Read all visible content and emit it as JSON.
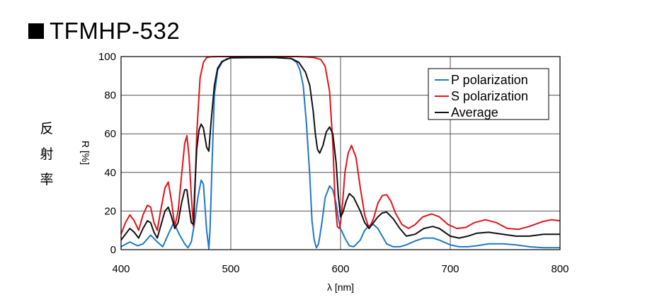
{
  "title": "TFMHP-532",
  "side_label": "反射率",
  "chart_data": {
    "type": "line",
    "title": "TFMHP-532",
    "xlabel": "λ [nm]",
    "ylabel": "R [%]",
    "xlim": [
      400,
      800
    ],
    "ylim": [
      0,
      100
    ],
    "xticks": [
      400,
      500,
      600,
      700,
      800
    ],
    "yticks": [
      0,
      20,
      40,
      60,
      80,
      100
    ],
    "grid": true,
    "legend_position": "top-right",
    "series": [
      {
        "name": "P polarization",
        "color": "#1f78c8",
        "x": [
          400,
          408,
          415,
          420,
          427,
          433,
          438,
          443,
          448,
          453,
          458,
          461,
          464,
          467,
          470,
          473,
          475,
          478,
          480,
          481,
          483,
          485,
          488,
          492,
          496,
          500,
          520,
          540,
          555,
          560,
          563,
          566,
          569,
          572,
          574,
          576,
          578,
          580,
          583,
          586,
          590,
          593,
          596,
          598,
          600,
          604,
          608,
          612,
          618,
          622,
          626,
          630,
          634,
          638,
          642,
          648,
          654,
          660,
          668,
          676,
          684,
          690,
          700,
          708,
          716,
          724,
          735,
          748,
          760,
          772,
          785,
          800
        ],
        "y": [
          1.5,
          4,
          2,
          3,
          7.5,
          4,
          1.5,
          8,
          14,
          8,
          3,
          1,
          4,
          14,
          27,
          36,
          34,
          10,
          0.5,
          10,
          45,
          80,
          93,
          97,
          98.8,
          99.3,
          99.5,
          99.5,
          99,
          97,
          93,
          85,
          65,
          38,
          15,
          5,
          1,
          3,
          14,
          27,
          33,
          31,
          24,
          16,
          11,
          6,
          2,
          1.5,
          5,
          10,
          12.5,
          13,
          11,
          7,
          3,
          1.5,
          1.5,
          2.5,
          4.5,
          6,
          6,
          5,
          2.5,
          1.5,
          1.5,
          2,
          3,
          3,
          2.5,
          1.5,
          1,
          1
        ]
      },
      {
        "name": "S polarization",
        "color": "#e0141c",
        "x": [
          400,
          404,
          408,
          412,
          416,
          420,
          424,
          427,
          430,
          433,
          436,
          440,
          443,
          446,
          449,
          452,
          455,
          458,
          460,
          462,
          464,
          466,
          467,
          469,
          472,
          475,
          478,
          482,
          490,
          500,
          560,
          568,
          576,
          582,
          586,
          590,
          593,
          595,
          597,
          599,
          600,
          602,
          604,
          607,
          610,
          614,
          618,
          622,
          626,
          630,
          634,
          638,
          642,
          646,
          650,
          656,
          662,
          668,
          675,
          683,
          690,
          698,
          706,
          714,
          722,
          732,
          742,
          752,
          762,
          772,
          784,
          792,
          800
        ],
        "y": [
          8,
          14,
          18,
          15,
          10,
          18,
          23,
          22,
          14,
          10,
          20,
          32,
          35,
          25,
          12,
          20,
          38,
          55,
          59,
          48,
          28,
          12,
          25,
          60,
          89,
          97,
          99.5,
          99.9,
          100,
          100,
          100,
          99.8,
          99.5,
          98.5,
          95,
          82,
          55,
          25,
          12,
          11,
          14,
          25,
          40,
          50,
          54,
          48,
          32,
          18,
          11,
          16,
          24,
          28,
          28.5,
          25,
          19,
          13,
          11,
          13,
          17,
          18.5,
          17,
          13,
          11,
          11.5,
          14,
          15.5,
          14,
          11,
          10.5,
          12,
          14.5,
          15.5,
          15
        ]
      },
      {
        "name": "Average",
        "color": "#111111",
        "x": [
          400,
          404,
          408,
          412,
          416,
          420,
          424,
          427,
          430,
          433,
          436,
          440,
          443,
          446,
          449,
          452,
          455,
          458,
          460,
          462,
          464,
          466,
          467,
          469,
          471,
          473,
          475,
          478,
          480,
          482,
          485,
          488,
          492,
          500,
          540,
          555,
          562,
          568,
          572,
          575,
          577,
          579,
          581,
          584,
          587,
          590,
          593,
          596,
          598,
          600,
          602,
          605,
          608,
          612,
          618,
          622,
          626,
          630,
          634,
          638,
          642,
          648,
          654,
          660,
          668,
          676,
          684,
          690,
          700,
          708,
          716,
          724,
          735,
          748,
          760,
          772,
          785,
          800
        ],
        "y": [
          5,
          8,
          11,
          9,
          6,
          11,
          15,
          14,
          9,
          6,
          12,
          20,
          22,
          17,
          11,
          14,
          24,
          31,
          31,
          22,
          14,
          13,
          30,
          52,
          62,
          65,
          63,
          53,
          51,
          66,
          85,
          94,
          97.5,
          99.4,
          99.5,
          99,
          97,
          92,
          85,
          72,
          60,
          52,
          50,
          54,
          61,
          63.5,
          60,
          45,
          28,
          17,
          19,
          25,
          29,
          27,
          20,
          14,
          11,
          14,
          17,
          19,
          19.5,
          16,
          11,
          7,
          8,
          11,
          12,
          11,
          7,
          6,
          7,
          8.5,
          9,
          8,
          7,
          7,
          8,
          8
        ]
      }
    ]
  }
}
